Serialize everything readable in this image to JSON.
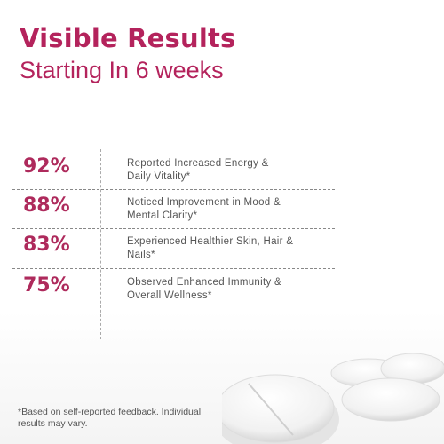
{
  "header": {
    "title": "Visible Results",
    "subtitle": "Starting In 6 weeks"
  },
  "stats": [
    {
      "value": "92%",
      "lines": [
        "Reported Increased Energy &",
        "Daily Vitality*"
      ]
    },
    {
      "value": "88%",
      "lines": [
        "Noticed Improvement in Mood &",
        "Mental Clarity*"
      ]
    },
    {
      "value": "83%",
      "lines": [
        "Experienced Healthier Skin, Hair &",
        "Nails*"
      ]
    },
    {
      "value": "75%",
      "lines": [
        "Observed Enhanced Immunity &",
        "Overall Wellness*"
      ]
    }
  ],
  "footnote": [
    "*Based on self-reported feedback. Individual",
    "results may vary."
  ]
}
